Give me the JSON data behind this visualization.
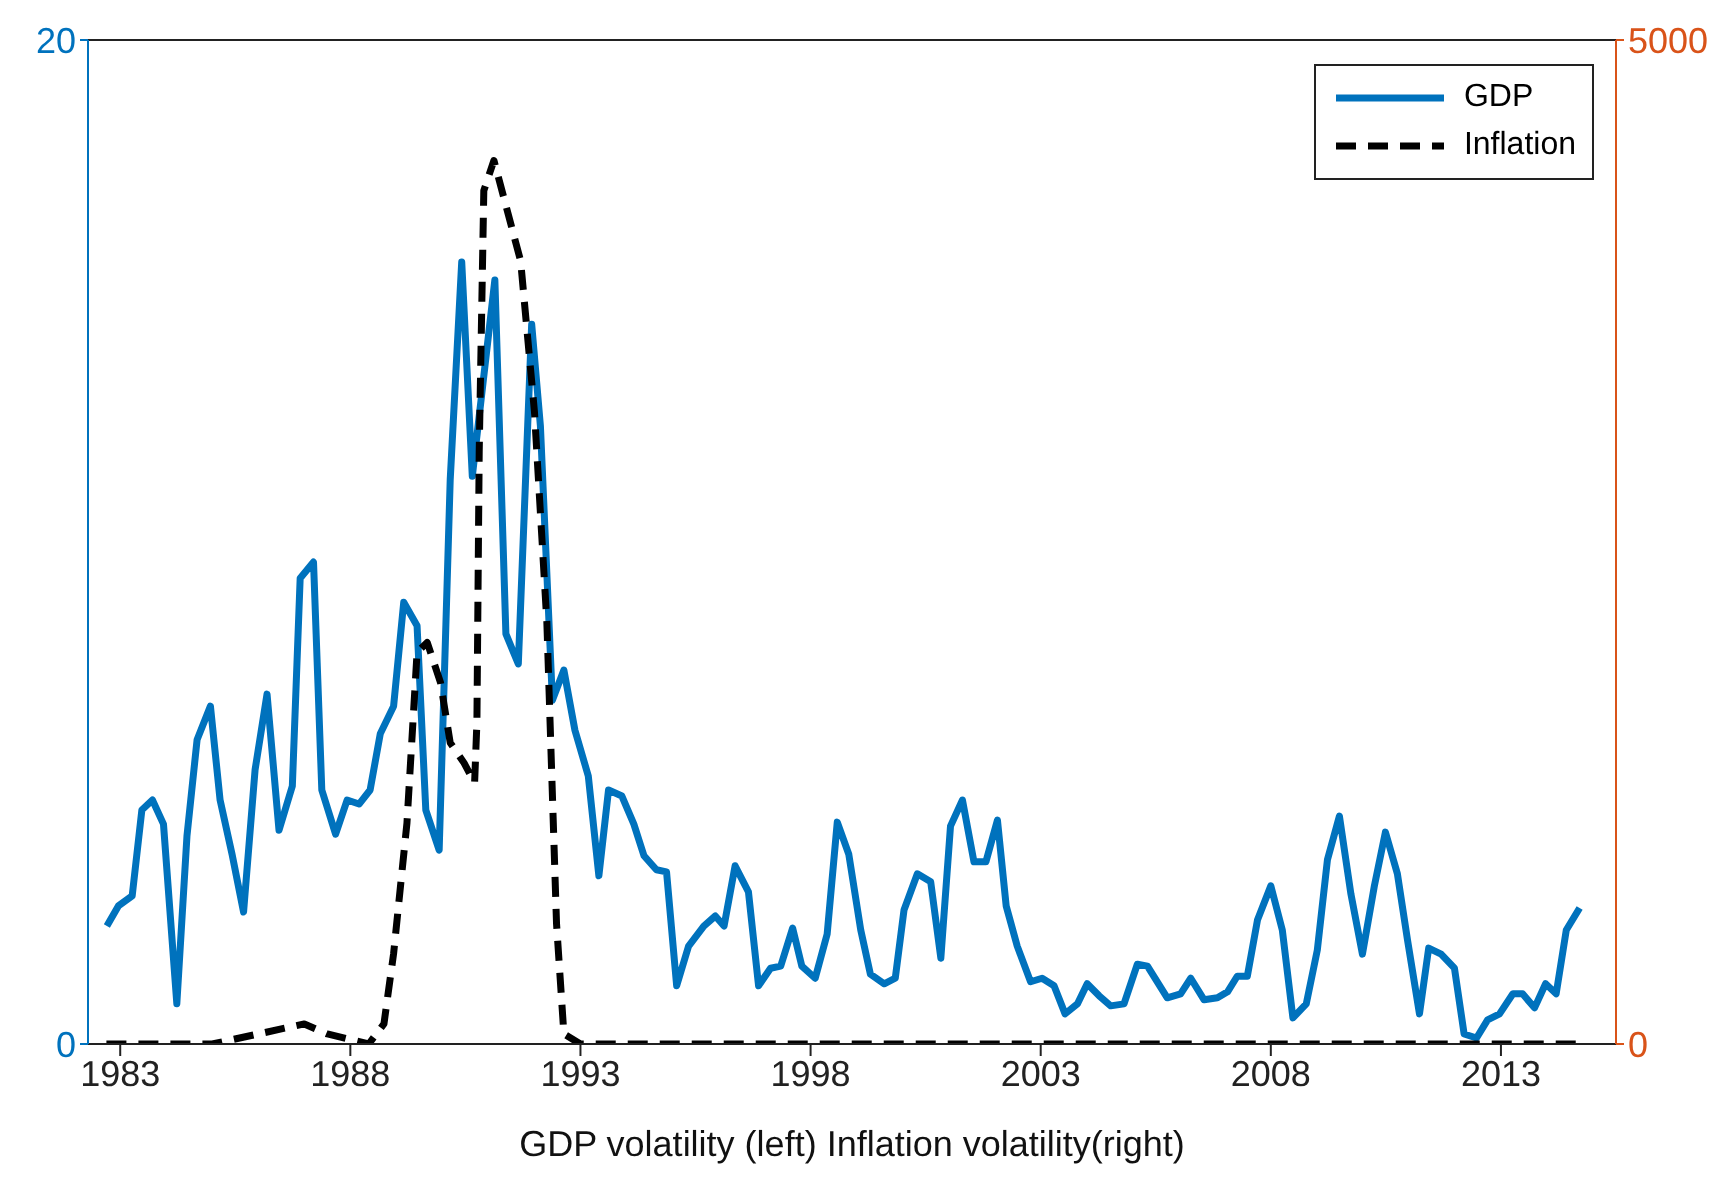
{
  "chart_data": {
    "type": "line",
    "xlabel": "GDP volatility (left)   Inflation volatility(right)",
    "xlim": [
      1982.3,
      2015.5
    ],
    "xticks": [
      1983,
      1988,
      1993,
      1998,
      2003,
      2008,
      2013
    ],
    "ylim": [
      0,
      20
    ],
    "yticks": [
      0,
      20
    ],
    "y2lim": [
      0,
      5000
    ],
    "y2ticks": [
      0,
      5000
    ],
    "legend": "top right",
    "series": [
      {
        "name": "GDP",
        "color": "#0072bd",
        "line_style": "solid",
        "x": [
          1982.71,
          1982.96,
          1983.26,
          1983.47,
          1983.7,
          1983.94,
          1984.23,
          1984.45,
          1984.67,
          1984.96,
          1985.17,
          1985.43,
          1985.68,
          1985.93,
          1986.19,
          1986.45,
          1986.74,
          1986.91,
          1987.2,
          1987.38,
          1987.68,
          1987.93,
          1988.19,
          1988.43,
          1988.65,
          1988.94,
          1989.16,
          1989.45,
          1989.64,
          1989.93,
          1990.17,
          1990.42,
          1990.65,
          1991.14,
          1991.38,
          1991.65,
          1991.94,
          1992.13,
          1992.39,
          1992.64,
          1992.88,
          1993.17,
          1993.4,
          1993.61,
          1993.9,
          1994.16,
          1994.38,
          1994.65,
          1994.87,
          1995.09,
          1995.35,
          1995.68,
          1995.93,
          1996.12,
          1996.36,
          1996.65,
          1996.87,
          1997.13,
          1997.35,
          1997.61,
          1997.81,
          1998.1,
          1998.36,
          1998.58,
          1998.83,
          1999.09,
          1999.3,
          1999.6,
          1999.84,
          2000.03,
          2000.32,
          2000.61,
          2000.83,
          2001.04,
          2001.3,
          2001.55,
          2001.81,
          2002.06,
          2002.25,
          2002.49,
          2002.78,
          2003.03,
          2003.29,
          2003.53,
          2003.8,
          2004.01,
          2004.27,
          2004.52,
          2004.81,
          2005.1,
          2005.32,
          2005.75,
          2006.04,
          2006.26,
          2006.55,
          2006.84,
          2007.06,
          2007.27,
          2007.49,
          2007.71,
          2008.0,
          2008.25,
          2008.48,
          2008.77,
          2009.01,
          2009.23,
          2009.49,
          2009.74,
          2009.99,
          2010.25,
          2010.49,
          2010.75,
          2010.97,
          2011.23,
          2011.43,
          2011.7,
          2011.99,
          2012.2,
          2012.47,
          2012.71,
          2012.97,
          2013.26,
          2013.47,
          2013.73,
          2013.97,
          2014.2,
          2014.42,
          2014.71
        ],
        "values": [
          2.35,
          2.75,
          2.95,
          4.66,
          4.86,
          4.38,
          0.8,
          4.14,
          6.06,
          6.73,
          4.86,
          3.78,
          2.63,
          5.46,
          6.97,
          4.26,
          5.14,
          9.28,
          9.6,
          5.06,
          4.18,
          4.86,
          4.78,
          5.06,
          6.18,
          6.73,
          8.8,
          8.33,
          4.66,
          3.86,
          11.24,
          15.58,
          11.31,
          15.22,
          8.17,
          7.57,
          14.34,
          12.31,
          6.85,
          7.45,
          6.25,
          5.34,
          3.35,
          5.06,
          4.94,
          4.38,
          3.75,
          3.47,
          3.43,
          1.16,
          1.95,
          2.35,
          2.55,
          2.35,
          3.55,
          3.03,
          1.16,
          1.51,
          1.55,
          2.31,
          1.55,
          1.31,
          2.19,
          4.42,
          3.78,
          2.27,
          1.39,
          1.2,
          1.31,
          2.67,
          3.39,
          3.23,
          1.71,
          4.34,
          4.86,
          3.63,
          3.63,
          4.46,
          2.75,
          1.95,
          1.24,
          1.31,
          1.16,
          0.6,
          0.8,
          1.2,
          0.96,
          0.76,
          0.8,
          1.59,
          1.55,
          0.92,
          1.0,
          1.31,
          0.88,
          0.92,
          1.04,
          1.35,
          1.35,
          2.47,
          3.15,
          2.27,
          0.52,
          0.8,
          1.87,
          3.67,
          4.54,
          2.99,
          1.79,
          3.15,
          4.22,
          3.39,
          2.07,
          0.6,
          1.91,
          1.79,
          1.51,
          0.2,
          0.12,
          0.48,
          0.6,
          1.0,
          1.0,
          0.72,
          1.2,
          1.0,
          2.27,
          2.71
        ]
      },
      {
        "name": "Inflation",
        "color": "#000000",
        "axis": "y2",
        "line_style": "dashed",
        "x": [
          1982.7,
          1984.0,
          1985.0,
          1986.0,
          1987.0,
          1987.5,
          1988.4,
          1988.73,
          1988.94,
          1989.23,
          1989.45,
          1989.67,
          1989.96,
          1990.17,
          1990.47,
          1990.7,
          1990.75,
          1990.8,
          1990.9,
          1991.12,
          1991.7,
          1992.0,
          1992.27,
          1992.48,
          1992.64,
          1993.0,
          2014.7
        ],
        "values": [
          0,
          0,
          0,
          50,
          100,
          50,
          0,
          100,
          450,
          1100,
          1950,
          2000,
          1800,
          1500,
          1400,
          1300,
          1600,
          2950,
          4250,
          4400,
          3900,
          3150,
          2100,
          600,
          50,
          0,
          0
        ]
      }
    ]
  }
}
